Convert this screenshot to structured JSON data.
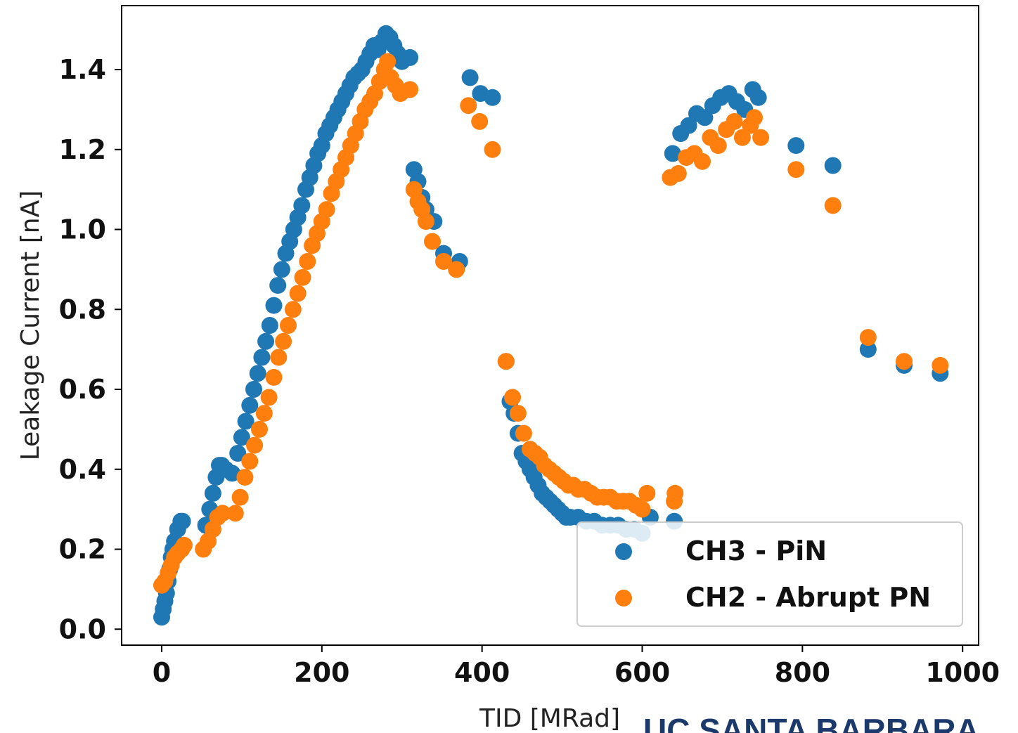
{
  "chart_data": {
    "type": "scatter",
    "xlabel": "TID [MRad]",
    "ylabel": "Leakage Current [nA]",
    "xlim": [
      -50,
      1020
    ],
    "ylim": [
      -0.04,
      1.56
    ],
    "xticks": [
      0,
      200,
      400,
      600,
      800,
      1000
    ],
    "yticks": [
      0.0,
      0.2,
      0.4,
      0.6,
      0.8,
      1.0,
      1.2,
      1.4
    ],
    "ytick_labels": [
      "0.0",
      "0.2",
      "0.4",
      "0.6",
      "0.8",
      "1.0",
      "1.2",
      "1.4"
    ],
    "grid": false,
    "legend_position": "lower-right",
    "series": [
      {
        "name": "CH3 - PiN",
        "color": "#1f77b4",
        "points": [
          [
            0,
            0.03
          ],
          [
            2,
            0.05
          ],
          [
            4,
            0.07
          ],
          [
            6,
            0.09
          ],
          [
            8,
            0.12
          ],
          [
            10,
            0.15
          ],
          [
            12,
            0.18
          ],
          [
            14,
            0.2
          ],
          [
            16,
            0.22
          ],
          [
            20,
            0.25
          ],
          [
            24,
            0.27
          ],
          [
            26,
            0.27
          ],
          [
            55,
            0.26
          ],
          [
            60,
            0.3
          ],
          [
            64,
            0.34
          ],
          [
            68,
            0.38
          ],
          [
            72,
            0.41
          ],
          [
            75,
            0.41
          ],
          [
            80,
            0.4
          ],
          [
            88,
            0.39
          ],
          [
            95,
            0.44
          ],
          [
            100,
            0.48
          ],
          [
            105,
            0.52
          ],
          [
            110,
            0.56
          ],
          [
            115,
            0.6
          ],
          [
            120,
            0.64
          ],
          [
            125,
            0.68
          ],
          [
            130,
            0.72
          ],
          [
            135,
            0.76
          ],
          [
            140,
            0.81
          ],
          [
            145,
            0.86
          ],
          [
            150,
            0.9
          ],
          [
            155,
            0.94
          ],
          [
            160,
            0.97
          ],
          [
            165,
            1.0
          ],
          [
            170,
            1.03
          ],
          [
            175,
            1.06
          ],
          [
            180,
            1.1
          ],
          [
            185,
            1.13
          ],
          [
            190,
            1.16
          ],
          [
            195,
            1.19
          ],
          [
            200,
            1.21
          ],
          [
            205,
            1.24
          ],
          [
            210,
            1.26
          ],
          [
            215,
            1.28
          ],
          [
            220,
            1.3
          ],
          [
            225,
            1.32
          ],
          [
            230,
            1.34
          ],
          [
            235,
            1.36
          ],
          [
            240,
            1.38
          ],
          [
            245,
            1.39
          ],
          [
            250,
            1.4
          ],
          [
            255,
            1.42
          ],
          [
            260,
            1.44
          ],
          [
            265,
            1.46
          ],
          [
            270,
            1.45
          ],
          [
            275,
            1.47
          ],
          [
            280,
            1.49
          ],
          [
            285,
            1.48
          ],
          [
            290,
            1.46
          ],
          [
            295,
            1.44
          ],
          [
            300,
            1.42
          ],
          [
            310,
            1.43
          ],
          [
            315,
            1.15
          ],
          [
            320,
            1.12
          ],
          [
            325,
            1.08
          ],
          [
            330,
            1.05
          ],
          [
            340,
            1.02
          ],
          [
            352,
            0.94
          ],
          [
            372,
            0.92
          ],
          [
            385,
            1.38
          ],
          [
            398,
            1.34
          ],
          [
            413,
            1.33
          ],
          [
            430,
            0.67
          ],
          [
            435,
            0.57
          ],
          [
            440,
            0.54
          ],
          [
            445,
            0.49
          ],
          [
            450,
            0.44
          ],
          [
            455,
            0.42
          ],
          [
            460,
            0.4
          ],
          [
            465,
            0.38
          ],
          [
            470,
            0.36
          ],
          [
            475,
            0.34
          ],
          [
            480,
            0.33
          ],
          [
            485,
            0.32
          ],
          [
            490,
            0.31
          ],
          [
            495,
            0.3
          ],
          [
            500,
            0.29
          ],
          [
            505,
            0.28
          ],
          [
            510,
            0.28
          ],
          [
            520,
            0.28
          ],
          [
            530,
            0.27
          ],
          [
            540,
            0.27
          ],
          [
            550,
            0.26
          ],
          [
            560,
            0.26
          ],
          [
            570,
            0.26
          ],
          [
            580,
            0.25
          ],
          [
            590,
            0.25
          ],
          [
            600,
            0.24
          ],
          [
            610,
            0.28
          ],
          [
            640,
            0.27
          ],
          [
            638,
            1.19
          ],
          [
            648,
            1.24
          ],
          [
            658,
            1.26
          ],
          [
            668,
            1.29
          ],
          [
            678,
            1.28
          ],
          [
            688,
            1.31
          ],
          [
            698,
            1.33
          ],
          [
            708,
            1.34
          ],
          [
            718,
            1.32
          ],
          [
            728,
            1.3
          ],
          [
            738,
            1.35
          ],
          [
            745,
            1.33
          ],
          [
            792,
            1.21
          ],
          [
            838,
            1.16
          ],
          [
            882,
            0.7
          ],
          [
            927,
            0.66
          ],
          [
            972,
            0.64
          ]
        ]
      },
      {
        "name": "CH2 - Abrupt PN",
        "color": "#ff7f0e",
        "points": [
          [
            0,
            0.11
          ],
          [
            4,
            0.12
          ],
          [
            8,
            0.14
          ],
          [
            12,
            0.16
          ],
          [
            16,
            0.18
          ],
          [
            20,
            0.19
          ],
          [
            25,
            0.2
          ],
          [
            28,
            0.21
          ],
          [
            52,
            0.2
          ],
          [
            58,
            0.22
          ],
          [
            64,
            0.25
          ],
          [
            70,
            0.28
          ],
          [
            76,
            0.29
          ],
          [
            92,
            0.29
          ],
          [
            98,
            0.33
          ],
          [
            104,
            0.38
          ],
          [
            110,
            0.42
          ],
          [
            116,
            0.46
          ],
          [
            122,
            0.5
          ],
          [
            128,
            0.54
          ],
          [
            134,
            0.58
          ],
          [
            140,
            0.63
          ],
          [
            146,
            0.68
          ],
          [
            152,
            0.72
          ],
          [
            158,
            0.76
          ],
          [
            164,
            0.8
          ],
          [
            170,
            0.84
          ],
          [
            176,
            0.88
          ],
          [
            182,
            0.92
          ],
          [
            188,
            0.96
          ],
          [
            194,
            0.99
          ],
          [
            200,
            1.02
          ],
          [
            206,
            1.05
          ],
          [
            212,
            1.09
          ],
          [
            218,
            1.12
          ],
          [
            224,
            1.15
          ],
          [
            230,
            1.18
          ],
          [
            236,
            1.21
          ],
          [
            242,
            1.24
          ],
          [
            248,
            1.27
          ],
          [
            254,
            1.3
          ],
          [
            260,
            1.32
          ],
          [
            266,
            1.34
          ],
          [
            272,
            1.37
          ],
          [
            278,
            1.4
          ],
          [
            282,
            1.42
          ],
          [
            286,
            1.38
          ],
          [
            292,
            1.36
          ],
          [
            298,
            1.34
          ],
          [
            310,
            1.35
          ],
          [
            315,
            1.1
          ],
          [
            320,
            1.07
          ],
          [
            325,
            1.05
          ],
          [
            330,
            1.02
          ],
          [
            338,
            0.97
          ],
          [
            352,
            0.92
          ],
          [
            368,
            0.9
          ],
          [
            383,
            1.31
          ],
          [
            397,
            1.27
          ],
          [
            413,
            1.2
          ],
          [
            430,
            0.67
          ],
          [
            438,
            0.58
          ],
          [
            445,
            0.54
          ],
          [
            452,
            0.49
          ],
          [
            460,
            0.45
          ],
          [
            466,
            0.44
          ],
          [
            472,
            0.43
          ],
          [
            478,
            0.41
          ],
          [
            484,
            0.4
          ],
          [
            490,
            0.39
          ],
          [
            496,
            0.38
          ],
          [
            502,
            0.37
          ],
          [
            508,
            0.36
          ],
          [
            514,
            0.36
          ],
          [
            520,
            0.35
          ],
          [
            528,
            0.35
          ],
          [
            536,
            0.34
          ],
          [
            544,
            0.33
          ],
          [
            552,
            0.33
          ],
          [
            560,
            0.33
          ],
          [
            568,
            0.32
          ],
          [
            576,
            0.32
          ],
          [
            584,
            0.32
          ],
          [
            592,
            0.31
          ],
          [
            600,
            0.3
          ],
          [
            606,
            0.34
          ],
          [
            640,
            0.32
          ],
          [
            641,
            0.34
          ],
          [
            635,
            1.13
          ],
          [
            645,
            1.14
          ],
          [
            655,
            1.18
          ],
          [
            665,
            1.19
          ],
          [
            675,
            1.17
          ],
          [
            685,
            1.23
          ],
          [
            695,
            1.21
          ],
          [
            705,
            1.25
          ],
          [
            715,
            1.27
          ],
          [
            725,
            1.23
          ],
          [
            735,
            1.26
          ],
          [
            740,
            1.28
          ],
          [
            748,
            1.23
          ],
          [
            792,
            1.15
          ],
          [
            838,
            1.06
          ],
          [
            882,
            0.73
          ],
          [
            927,
            0.67
          ],
          [
            972,
            0.66
          ]
        ]
      }
    ]
  },
  "footer": {
    "partial_logo_text": "UC SANTA BARBARA"
  }
}
